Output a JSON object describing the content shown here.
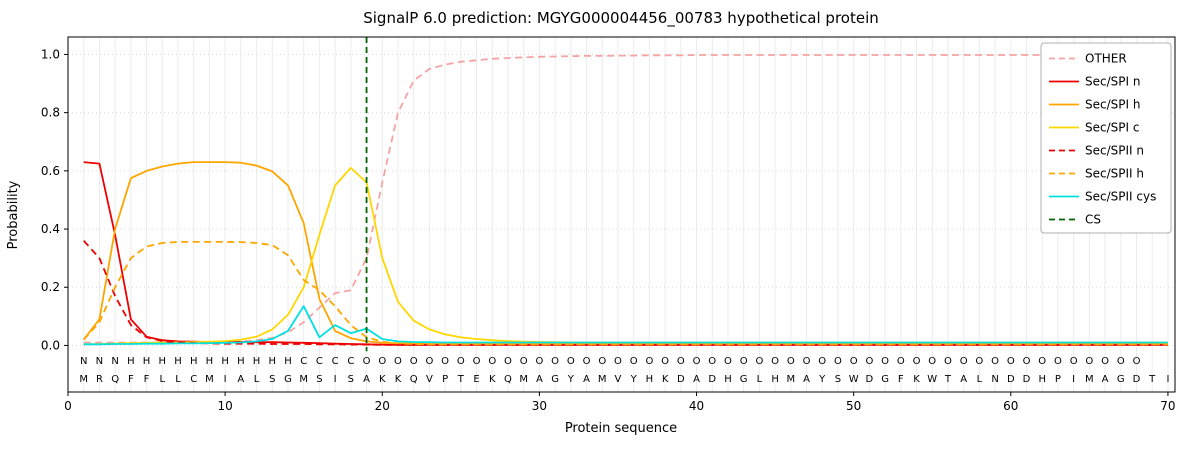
{
  "chart_data": {
    "type": "line",
    "title": "SignalP 6.0 prediction: MGYG000004456_00783 hypothetical protein",
    "xlabel": "Protein sequence",
    "ylabel": "Probability",
    "xlim": [
      0,
      70.45
    ],
    "ylim": [
      -0.16,
      1.06
    ],
    "x_ticks": [
      0,
      10,
      20,
      30,
      40,
      50,
      60,
      70
    ],
    "x_tick_labels": [
      "0",
      "10",
      "20",
      "30",
      "40",
      "50",
      "60",
      "70"
    ],
    "y_ticks": [
      0.0,
      0.2,
      0.4,
      0.6,
      0.8,
      1.0
    ],
    "y_tick_labels": [
      "0.0",
      "0.2",
      "0.4",
      "0.6",
      "0.8",
      "1.0"
    ],
    "grid": true,
    "legend_position": "upper right",
    "x": [
      1,
      2,
      3,
      4,
      5,
      6,
      7,
      8,
      9,
      10,
      11,
      12,
      13,
      14,
      15,
      16,
      17,
      18,
      19,
      20,
      21,
      22,
      23,
      24,
      25,
      26,
      27,
      28,
      29,
      30,
      31,
      32,
      33,
      34,
      35,
      36,
      37,
      38,
      39,
      40,
      41,
      42,
      43,
      44,
      45,
      46,
      47,
      48,
      49,
      50,
      51,
      52,
      53,
      54,
      55,
      56,
      57,
      58,
      59,
      60,
      61,
      62,
      63,
      64,
      65,
      66,
      67,
      68,
      69,
      70
    ],
    "series": [
      {
        "name": "OTHER",
        "color": "#f5a3a3",
        "dashed": true,
        "values": [
          0.01,
          0.01,
          0.01,
          0.01,
          0.01,
          0.01,
          0.01,
          0.01,
          0.011,
          0.012,
          0.014,
          0.018,
          0.026,
          0.045,
          0.08,
          0.13,
          0.18,
          0.19,
          0.3,
          0.56,
          0.8,
          0.91,
          0.95,
          0.965,
          0.975,
          0.98,
          0.985,
          0.988,
          0.99,
          0.992,
          0.993,
          0.994,
          0.995,
          0.995,
          0.996,
          0.996,
          0.997,
          0.997,
          0.997,
          0.998,
          0.998,
          0.998,
          0.998,
          0.998,
          0.998,
          0.998,
          0.998,
          0.998,
          0.998,
          0.998,
          0.998,
          0.998,
          0.998,
          0.998,
          0.998,
          0.998,
          0.998,
          0.998,
          0.998,
          0.998,
          0.998,
          0.998,
          0.998,
          0.998,
          0.998,
          0.998,
          0.998,
          0.998,
          0.998,
          0.998
        ]
      },
      {
        "name": "Sec/SPI n",
        "color": "#ee0000",
        "dashed": false,
        "values": [
          0.63,
          0.625,
          0.38,
          0.09,
          0.03,
          0.018,
          0.014,
          0.013,
          0.012,
          0.012,
          0.012,
          0.011,
          0.011,
          0.01,
          0.009,
          0.008,
          0.006,
          0.005,
          0.004,
          0.003,
          0.002,
          0.002,
          0.002,
          0.002,
          0.002,
          0.002,
          0.002,
          0.002,
          0.002,
          0.002,
          0.002,
          0.002,
          0.002,
          0.002,
          0.002,
          0.002,
          0.002,
          0.002,
          0.002,
          0.002,
          0.002,
          0.002,
          0.002,
          0.002,
          0.002,
          0.002,
          0.002,
          0.002,
          0.002,
          0.002,
          0.002,
          0.002,
          0.002,
          0.002,
          0.002,
          0.002,
          0.002,
          0.002,
          0.002,
          0.002,
          0.002,
          0.002,
          0.002,
          0.002,
          0.002,
          0.002,
          0.002,
          0.002,
          0.002,
          0.002
        ]
      },
      {
        "name": "Sec/SPI h",
        "color": "#ffa500",
        "dashed": false,
        "values": [
          0.02,
          0.09,
          0.4,
          0.575,
          0.6,
          0.615,
          0.625,
          0.63,
          0.63,
          0.63,
          0.628,
          0.618,
          0.598,
          0.55,
          0.42,
          0.16,
          0.05,
          0.025,
          0.014,
          0.009,
          0.007,
          0.006,
          0.005,
          0.005,
          0.005,
          0.005,
          0.005,
          0.005,
          0.005,
          0.005,
          0.005,
          0.005,
          0.005,
          0.005,
          0.005,
          0.005,
          0.005,
          0.005,
          0.005,
          0.005,
          0.005,
          0.005,
          0.005,
          0.005,
          0.005,
          0.005,
          0.005,
          0.005,
          0.005,
          0.005,
          0.005,
          0.005,
          0.005,
          0.005,
          0.005,
          0.005,
          0.005,
          0.005,
          0.005,
          0.005,
          0.005,
          0.005,
          0.005,
          0.005,
          0.005,
          0.005,
          0.005,
          0.005,
          0.005,
          0.005
        ]
      },
      {
        "name": "Sec/SPI c",
        "color": "#ffd700",
        "dashed": false,
        "values": [
          0.004,
          0.005,
          0.006,
          0.008,
          0.009,
          0.01,
          0.01,
          0.011,
          0.013,
          0.015,
          0.02,
          0.03,
          0.055,
          0.105,
          0.2,
          0.38,
          0.55,
          0.61,
          0.56,
          0.3,
          0.15,
          0.085,
          0.055,
          0.038,
          0.028,
          0.022,
          0.018,
          0.015,
          0.013,
          0.012,
          0.011,
          0.01,
          0.01,
          0.01,
          0.01,
          0.01,
          0.01,
          0.01,
          0.01,
          0.01,
          0.01,
          0.01,
          0.01,
          0.01,
          0.01,
          0.01,
          0.01,
          0.01,
          0.01,
          0.01,
          0.01,
          0.01,
          0.01,
          0.01,
          0.01,
          0.01,
          0.01,
          0.01,
          0.01,
          0.01,
          0.01,
          0.01,
          0.01,
          0.01,
          0.01,
          0.01,
          0.01,
          0.01,
          0.01,
          0.01
        ]
      },
      {
        "name": "Sec/SPII n",
        "color": "#ee0000",
        "dashed": true,
        "values": [
          0.36,
          0.3,
          0.17,
          0.07,
          0.028,
          0.015,
          0.01,
          0.008,
          0.007,
          0.006,
          0.006,
          0.006,
          0.005,
          0.005,
          0.005,
          0.004,
          0.004,
          0.003,
          0.003,
          0.002,
          0.002,
          0.002,
          0.002,
          0.002,
          0.002,
          0.002,
          0.002,
          0.002,
          0.002,
          0.002,
          0.002,
          0.002,
          0.002,
          0.002,
          0.002,
          0.002,
          0.002,
          0.002,
          0.002,
          0.002,
          0.002,
          0.002,
          0.002,
          0.002,
          0.002,
          0.002,
          0.002,
          0.002,
          0.002,
          0.002,
          0.002,
          0.002,
          0.002,
          0.002,
          0.002,
          0.002,
          0.002,
          0.002,
          0.002,
          0.002,
          0.002,
          0.002,
          0.002,
          0.002,
          0.002,
          0.002,
          0.002,
          0.002,
          0.002,
          0.002
        ]
      },
      {
        "name": "Sec/SPII h",
        "color": "#ffa500",
        "dashed": true,
        "values": [
          0.02,
          0.08,
          0.2,
          0.3,
          0.34,
          0.352,
          0.356,
          0.356,
          0.356,
          0.356,
          0.355,
          0.352,
          0.345,
          0.31,
          0.225,
          0.19,
          0.135,
          0.07,
          0.028,
          0.013,
          0.007,
          0.005,
          0.004,
          0.004,
          0.004,
          0.004,
          0.004,
          0.004,
          0.004,
          0.004,
          0.004,
          0.004,
          0.004,
          0.004,
          0.004,
          0.004,
          0.004,
          0.004,
          0.004,
          0.004,
          0.004,
          0.004,
          0.004,
          0.004,
          0.004,
          0.004,
          0.004,
          0.004,
          0.004,
          0.004,
          0.004,
          0.004,
          0.004,
          0.004,
          0.004,
          0.004,
          0.004,
          0.004,
          0.004,
          0.004,
          0.004,
          0.004,
          0.004,
          0.004,
          0.004,
          0.004,
          0.004,
          0.004,
          0.004,
          0.004
        ]
      },
      {
        "name": "Sec/SPII cys",
        "color": "#00e0e0",
        "dashed": false,
        "values": [
          0.004,
          0.004,
          0.005,
          0.005,
          0.006,
          0.006,
          0.007,
          0.007,
          0.008,
          0.009,
          0.01,
          0.014,
          0.022,
          0.05,
          0.135,
          0.028,
          0.07,
          0.042,
          0.058,
          0.022,
          0.014,
          0.012,
          0.011,
          0.01,
          0.01,
          0.01,
          0.01,
          0.01,
          0.01,
          0.01,
          0.01,
          0.01,
          0.01,
          0.01,
          0.01,
          0.01,
          0.01,
          0.01,
          0.01,
          0.01,
          0.01,
          0.01,
          0.01,
          0.01,
          0.01,
          0.01,
          0.01,
          0.01,
          0.01,
          0.01,
          0.01,
          0.01,
          0.01,
          0.01,
          0.01,
          0.01,
          0.01,
          0.01,
          0.01,
          0.01,
          0.01,
          0.01,
          0.01,
          0.01,
          0.01,
          0.01,
          0.01,
          0.01,
          0.01,
          0.01
        ]
      }
    ],
    "cs_line": {
      "label": "CS",
      "x": 19,
      "color": "#006400",
      "dashed": true
    },
    "sequence": "MRQFFLLCMIALSGMSISAKKQVPTEKQMAGYAMVYHKDADHGLHMAYSWDGFKWTALNDDHPIMAGDTI",
    "region_labels": "NNNHHHHHHHHHHHCCCCOOOOOOOOOOOOOOOOOOOOOOOOOOOOOOOOOOOOOOOOOOOOOOOOOO",
    "region_colors": {
      "N": "#ee0000",
      "H": "#ffa500",
      "C": "#ffd700",
      "O": "#a6a6a6"
    },
    "sequence_color": "#000000"
  }
}
